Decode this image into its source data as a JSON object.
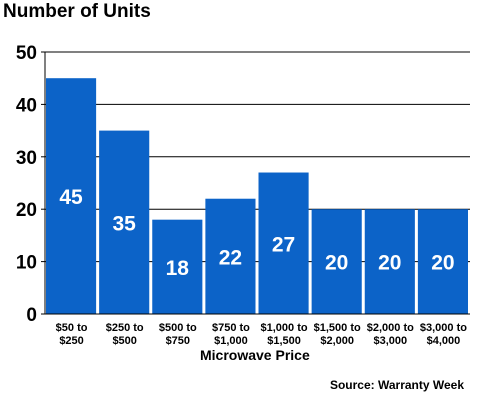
{
  "chart_data": {
    "type": "bar",
    "title": "Number of Units",
    "xlabel": "Microwave Price",
    "ylabel": "",
    "categories": [
      [
        "$50 to",
        "$250"
      ],
      [
        "$250 to",
        "$500"
      ],
      [
        "$500 to",
        "$750"
      ],
      [
        "$750 to",
        "$1,000"
      ],
      [
        "$1,000 to",
        "$1,500"
      ],
      [
        "$1,500 to",
        "$2,000"
      ],
      [
        "$2,000 to",
        "$3,000"
      ],
      [
        "$3,000 to",
        "$4,000"
      ]
    ],
    "values": [
      45,
      35,
      18,
      22,
      27,
      20,
      20,
      20
    ],
    "data_labels": [
      "45",
      "35",
      "18",
      "22",
      "27",
      "20",
      "20",
      "20"
    ],
    "y_ticks": [
      "0",
      "10",
      "20",
      "30",
      "40",
      "50"
    ],
    "ylim": [
      0,
      50
    ],
    "grid": true,
    "legend": "none",
    "bar_color": "#0c63c8",
    "source": "Source: Warranty Week"
  }
}
